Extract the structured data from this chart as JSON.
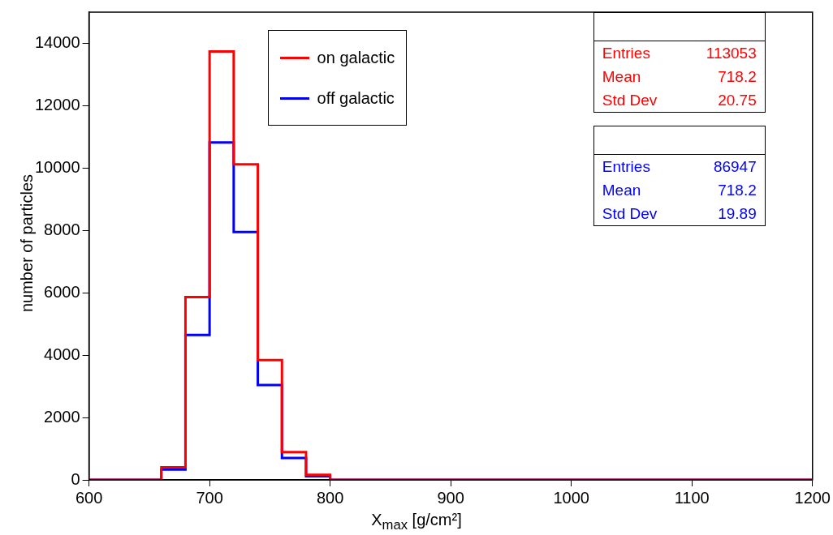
{
  "chart_data": {
    "type": "histogram",
    "xlabel": "X$_{max}$ [g/cm²]",
    "ylabel": "number of particles",
    "bins": [
      600,
      620,
      640,
      660,
      680,
      700,
      720,
      740,
      760,
      780,
      800,
      820,
      840,
      860,
      880,
      900,
      920,
      940,
      960,
      980,
      1000,
      1020,
      1040,
      1060,
      1080,
      1100,
      1120,
      1140,
      1160,
      1180,
      1200
    ],
    "series": [
      {
        "name": "on galactic",
        "color": "#ff0000",
        "values": [
          0,
          0,
          0,
          400,
          5860,
          13740,
          10120,
          3840,
          890,
          160,
          0,
          0,
          0,
          0,
          0,
          0,
          0,
          0,
          0,
          0,
          0,
          0,
          0,
          0,
          0,
          0,
          0,
          0,
          0,
          0
        ]
      },
      {
        "name": "off galactic",
        "color": "#0000ff",
        "values": [
          0,
          0,
          0,
          330,
          4650,
          10820,
          7950,
          3040,
          700,
          120,
          0,
          0,
          0,
          0,
          0,
          0,
          0,
          0,
          0,
          0,
          0,
          0,
          0,
          0,
          0,
          0,
          0,
          0,
          0,
          0
        ]
      }
    ],
    "xlim": [
      600,
      1200
    ],
    "xticks": [
      600,
      700,
      800,
      900,
      1000,
      1100,
      1200
    ],
    "ylim": [
      0,
      15000
    ],
    "yticks": [
      0,
      2000,
      4000,
      6000,
      8000,
      10000,
      12000,
      14000
    ],
    "grid": false,
    "legend": "top left",
    "annotations": [
      "Entries 113053",
      "Mean 718.2",
      "Std Dev 20.75",
      "Entries 86947",
      "Mean 718.2",
      "Std Dev 19.89"
    ]
  }
}
